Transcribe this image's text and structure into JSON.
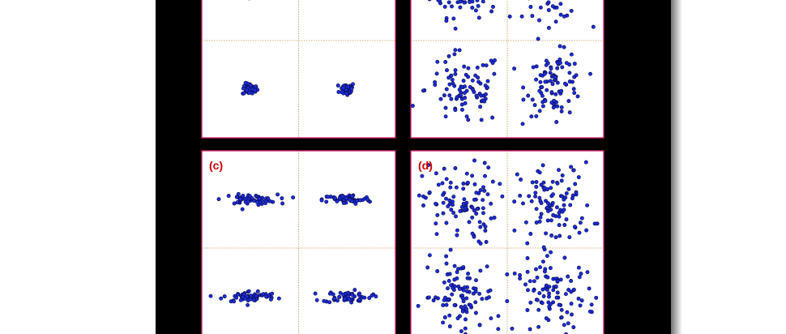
{
  "figure": {
    "frame_color": "#000000",
    "panel_border_color": "#d61f6e",
    "quadrant_line_color": "#c8914a",
    "marker_color": "#1a2ee6",
    "marker_edge_color": "#0b0b4a",
    "label_color": "#cc0000"
  },
  "chart_data": [
    {
      "type": "scatter",
      "panel_label": "",
      "title": "",
      "xlabel": "",
      "ylabel": "",
      "xlim": [
        -2,
        2
      ],
      "ylim": [
        -2,
        2
      ],
      "grid": false,
      "quadrant_lines": true,
      "clusters": [
        {
          "cx": -1,
          "cy": 1,
          "sx": 0.06,
          "sy": 0.05,
          "n": 40
        },
        {
          "cx": 1,
          "cy": 1,
          "sx": 0.06,
          "sy": 0.05,
          "n": 40
        },
        {
          "cx": -1,
          "cy": -1,
          "sx": 0.08,
          "sy": 0.06,
          "n": 40
        },
        {
          "cx": 1,
          "cy": -1,
          "sx": 0.08,
          "sy": 0.07,
          "n": 40
        }
      ]
    },
    {
      "type": "scatter",
      "panel_label": "",
      "title": "",
      "xlabel": "",
      "ylabel": "",
      "xlim": [
        -2,
        2
      ],
      "ylim": [
        -2,
        2
      ],
      "grid": false,
      "quadrant_lines": true,
      "clusters": [
        {
          "cx": -0.9,
          "cy": 1.05,
          "sx": 0.35,
          "sy": 0.28,
          "n": 90
        },
        {
          "cx": 1.0,
          "cy": 1.05,
          "sx": 0.35,
          "sy": 0.3,
          "n": 90
        },
        {
          "cx": -0.9,
          "cy": -1.0,
          "sx": 0.4,
          "sy": 0.38,
          "n": 90
        },
        {
          "cx": 1.0,
          "cy": -0.9,
          "sx": 0.3,
          "sy": 0.32,
          "n": 90
        }
      ]
    },
    {
      "type": "scatter",
      "panel_label": "(c)",
      "title": "",
      "xlabel": "",
      "ylabel": "",
      "xlim": [
        -2,
        2
      ],
      "ylim": [
        -2,
        2
      ],
      "grid": false,
      "quadrant_lines": true,
      "clusters": [
        {
          "cx": -1.0,
          "cy": 1.0,
          "sx": 0.28,
          "sy": 0.05,
          "n": 60
        },
        {
          "cx": 1.0,
          "cy": 1.0,
          "sx": 0.25,
          "sy": 0.05,
          "n": 60
        },
        {
          "cx": -1.0,
          "cy": -1.0,
          "sx": 0.28,
          "sy": 0.06,
          "n": 60
        },
        {
          "cx": 1.0,
          "cy": -1.0,
          "sx": 0.25,
          "sy": 0.06,
          "n": 60
        }
      ]
    },
    {
      "type": "scatter",
      "panel_label": "(d)",
      "title": "",
      "xlabel": "",
      "ylabel": "",
      "xlim": [
        -2,
        2
      ],
      "ylim": [
        -2,
        2
      ],
      "grid": false,
      "quadrant_lines": true,
      "clusters": [
        {
          "cx": -1.0,
          "cy": 0.9,
          "sx": 0.38,
          "sy": 0.42,
          "n": 100
        },
        {
          "cx": 1.0,
          "cy": 0.9,
          "sx": 0.38,
          "sy": 0.42,
          "n": 100
        },
        {
          "cx": -1.0,
          "cy": -1.0,
          "sx": 0.38,
          "sy": 0.38,
          "n": 100
        },
        {
          "cx": 1.0,
          "cy": -1.0,
          "sx": 0.42,
          "sy": 0.38,
          "n": 100
        }
      ]
    }
  ]
}
